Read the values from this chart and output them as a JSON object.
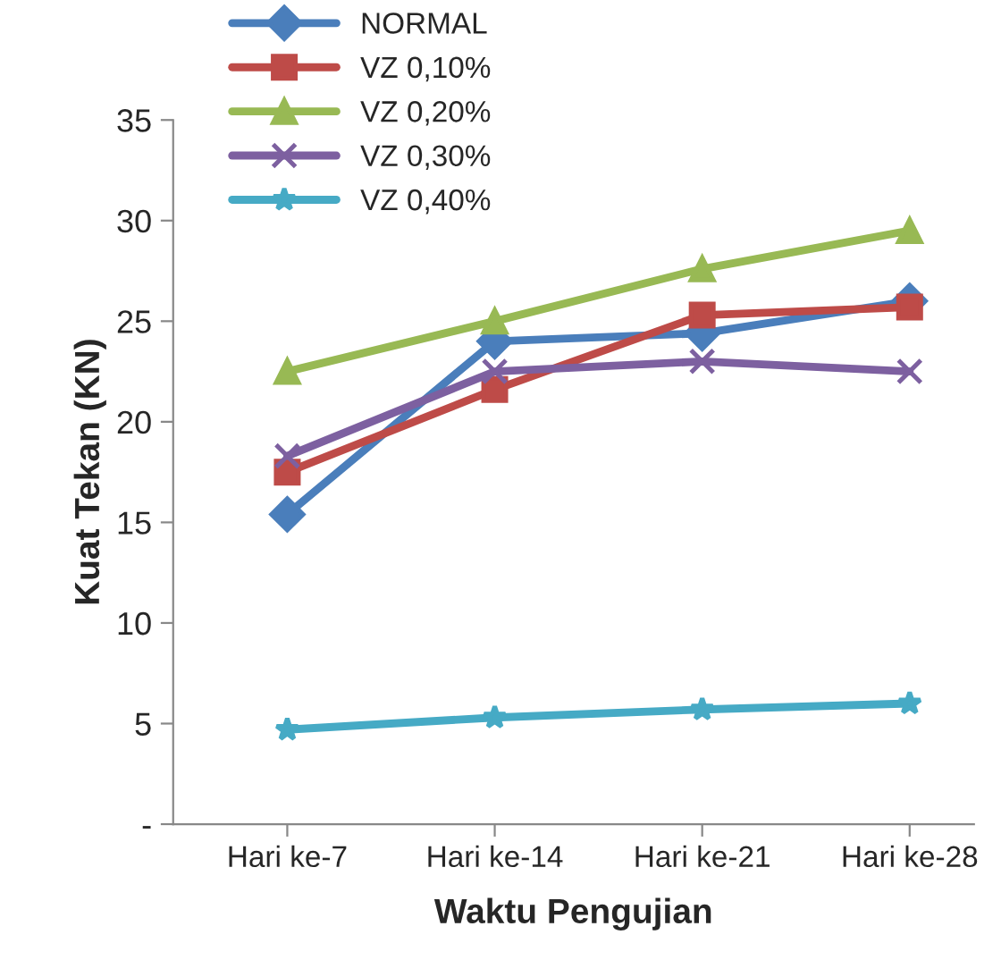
{
  "chart_data": {
    "type": "line",
    "xlabel": "Waktu Pengujian",
    "ylabel": "Kuat Tekan (KN)",
    "categories": [
      "Hari ke-7",
      "Hari ke-14",
      "Hari ke-21",
      "Hari ke-28"
    ],
    "series": [
      {
        "name": "NORMAL",
        "color": "#4a7ebb",
        "marker": "diamond",
        "values": [
          15.4,
          24.0,
          24.4,
          26.0
        ]
      },
      {
        "name": "VZ 0,10%",
        "color": "#be4b48",
        "marker": "square",
        "values": [
          17.5,
          21.6,
          25.3,
          25.7
        ]
      },
      {
        "name": "VZ 0,20%",
        "color": "#98b954",
        "marker": "triangle",
        "values": [
          22.5,
          25.0,
          27.6,
          29.5
        ]
      },
      {
        "name": "VZ 0,30%",
        "color": "#7d60a0",
        "marker": "cross",
        "values": [
          18.3,
          22.5,
          23.0,
          22.5
        ]
      },
      {
        "name": "VZ 0,40%",
        "color": "#46aac5",
        "marker": "star",
        "values": [
          4.7,
          5.3,
          5.7,
          6.0
        ]
      }
    ],
    "ylim": [
      0,
      35
    ],
    "yticks": [
      {
        "value": 0,
        "label": "-"
      },
      5,
      10,
      15,
      20,
      25,
      30,
      35
    ],
    "grid": false,
    "legend": "top",
    "line_style": "solid"
  }
}
